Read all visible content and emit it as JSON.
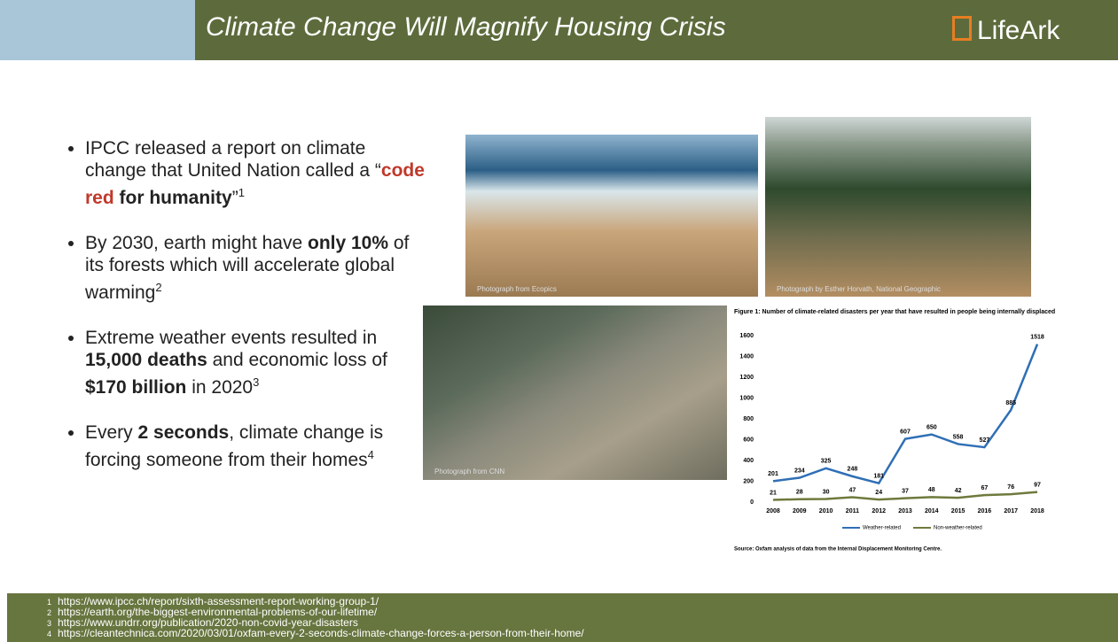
{
  "header": {
    "title": "Climate Change Will Magnify Housing Crisis",
    "logo": "LifeArk"
  },
  "bullets": [
    [
      "IPCC released a report on climate change that United Nation called a “",
      "code red",
      " for humanity",
      "”",
      "1"
    ],
    [
      "By 2030, earth might have ",
      "only 10%",
      " of its forests which will accelerate global warming",
      "2"
    ],
    [
      "Extreme weather events resulted in ",
      "15,000 deaths",
      " and economic loss of ",
      "$170 billion",
      " in 2020",
      "3"
    ],
    [
      "Every ",
      "2 seconds",
      ", climate change is forcing someone from their homes",
      "4"
    ]
  ],
  "photos": [
    "Photograph from Ecopics",
    "Photograph by Esther Horvath, National Geographic",
    "Photograph from CNN"
  ],
  "chart_data": {
    "type": "line",
    "title": "Figure 1: Number of climate-related disasters per year that have resulted in people being internally displaced",
    "categories": [
      "2008",
      "2009",
      "2010",
      "2011",
      "2012",
      "2013",
      "2014",
      "2015",
      "2016",
      "2017",
      "2018"
    ],
    "series": [
      {
        "name": "Weather-related",
        "color": "#2f6fb5",
        "values": [
          201,
          234,
          325,
          248,
          181,
          607,
          650,
          558,
          527,
          885,
          1518
        ]
      },
      {
        "name": "Non-weather-related",
        "color": "#6e7a3c",
        "values": [
          21,
          28,
          30,
          47,
          24,
          37,
          48,
          42,
          67,
          76,
          97
        ]
      }
    ],
    "ylim": [
      0,
      1600
    ],
    "yticks": [
      0,
      200,
      400,
      600,
      800,
      1000,
      1200,
      1400,
      1600
    ],
    "grid": false,
    "source": "Source: Oxfam analysis of data from the Internal Displacement Monitoring Centre."
  },
  "footnotes": [
    [
      "1",
      "https://www.ipcc.ch/report/sixth-assessment-report-working-group-1/"
    ],
    [
      "2",
      "https://earth.org/the-biggest-environmental-problems-of-our-lifetime/"
    ],
    [
      "3",
      "https://www.undrr.org/publication/2020-non-covid-year-disasters"
    ],
    [
      "4",
      "https://cleantechnica.com/2020/03/01/oxfam-every-2-seconds-climate-change-forces-a-person-from-their-home/"
    ]
  ]
}
